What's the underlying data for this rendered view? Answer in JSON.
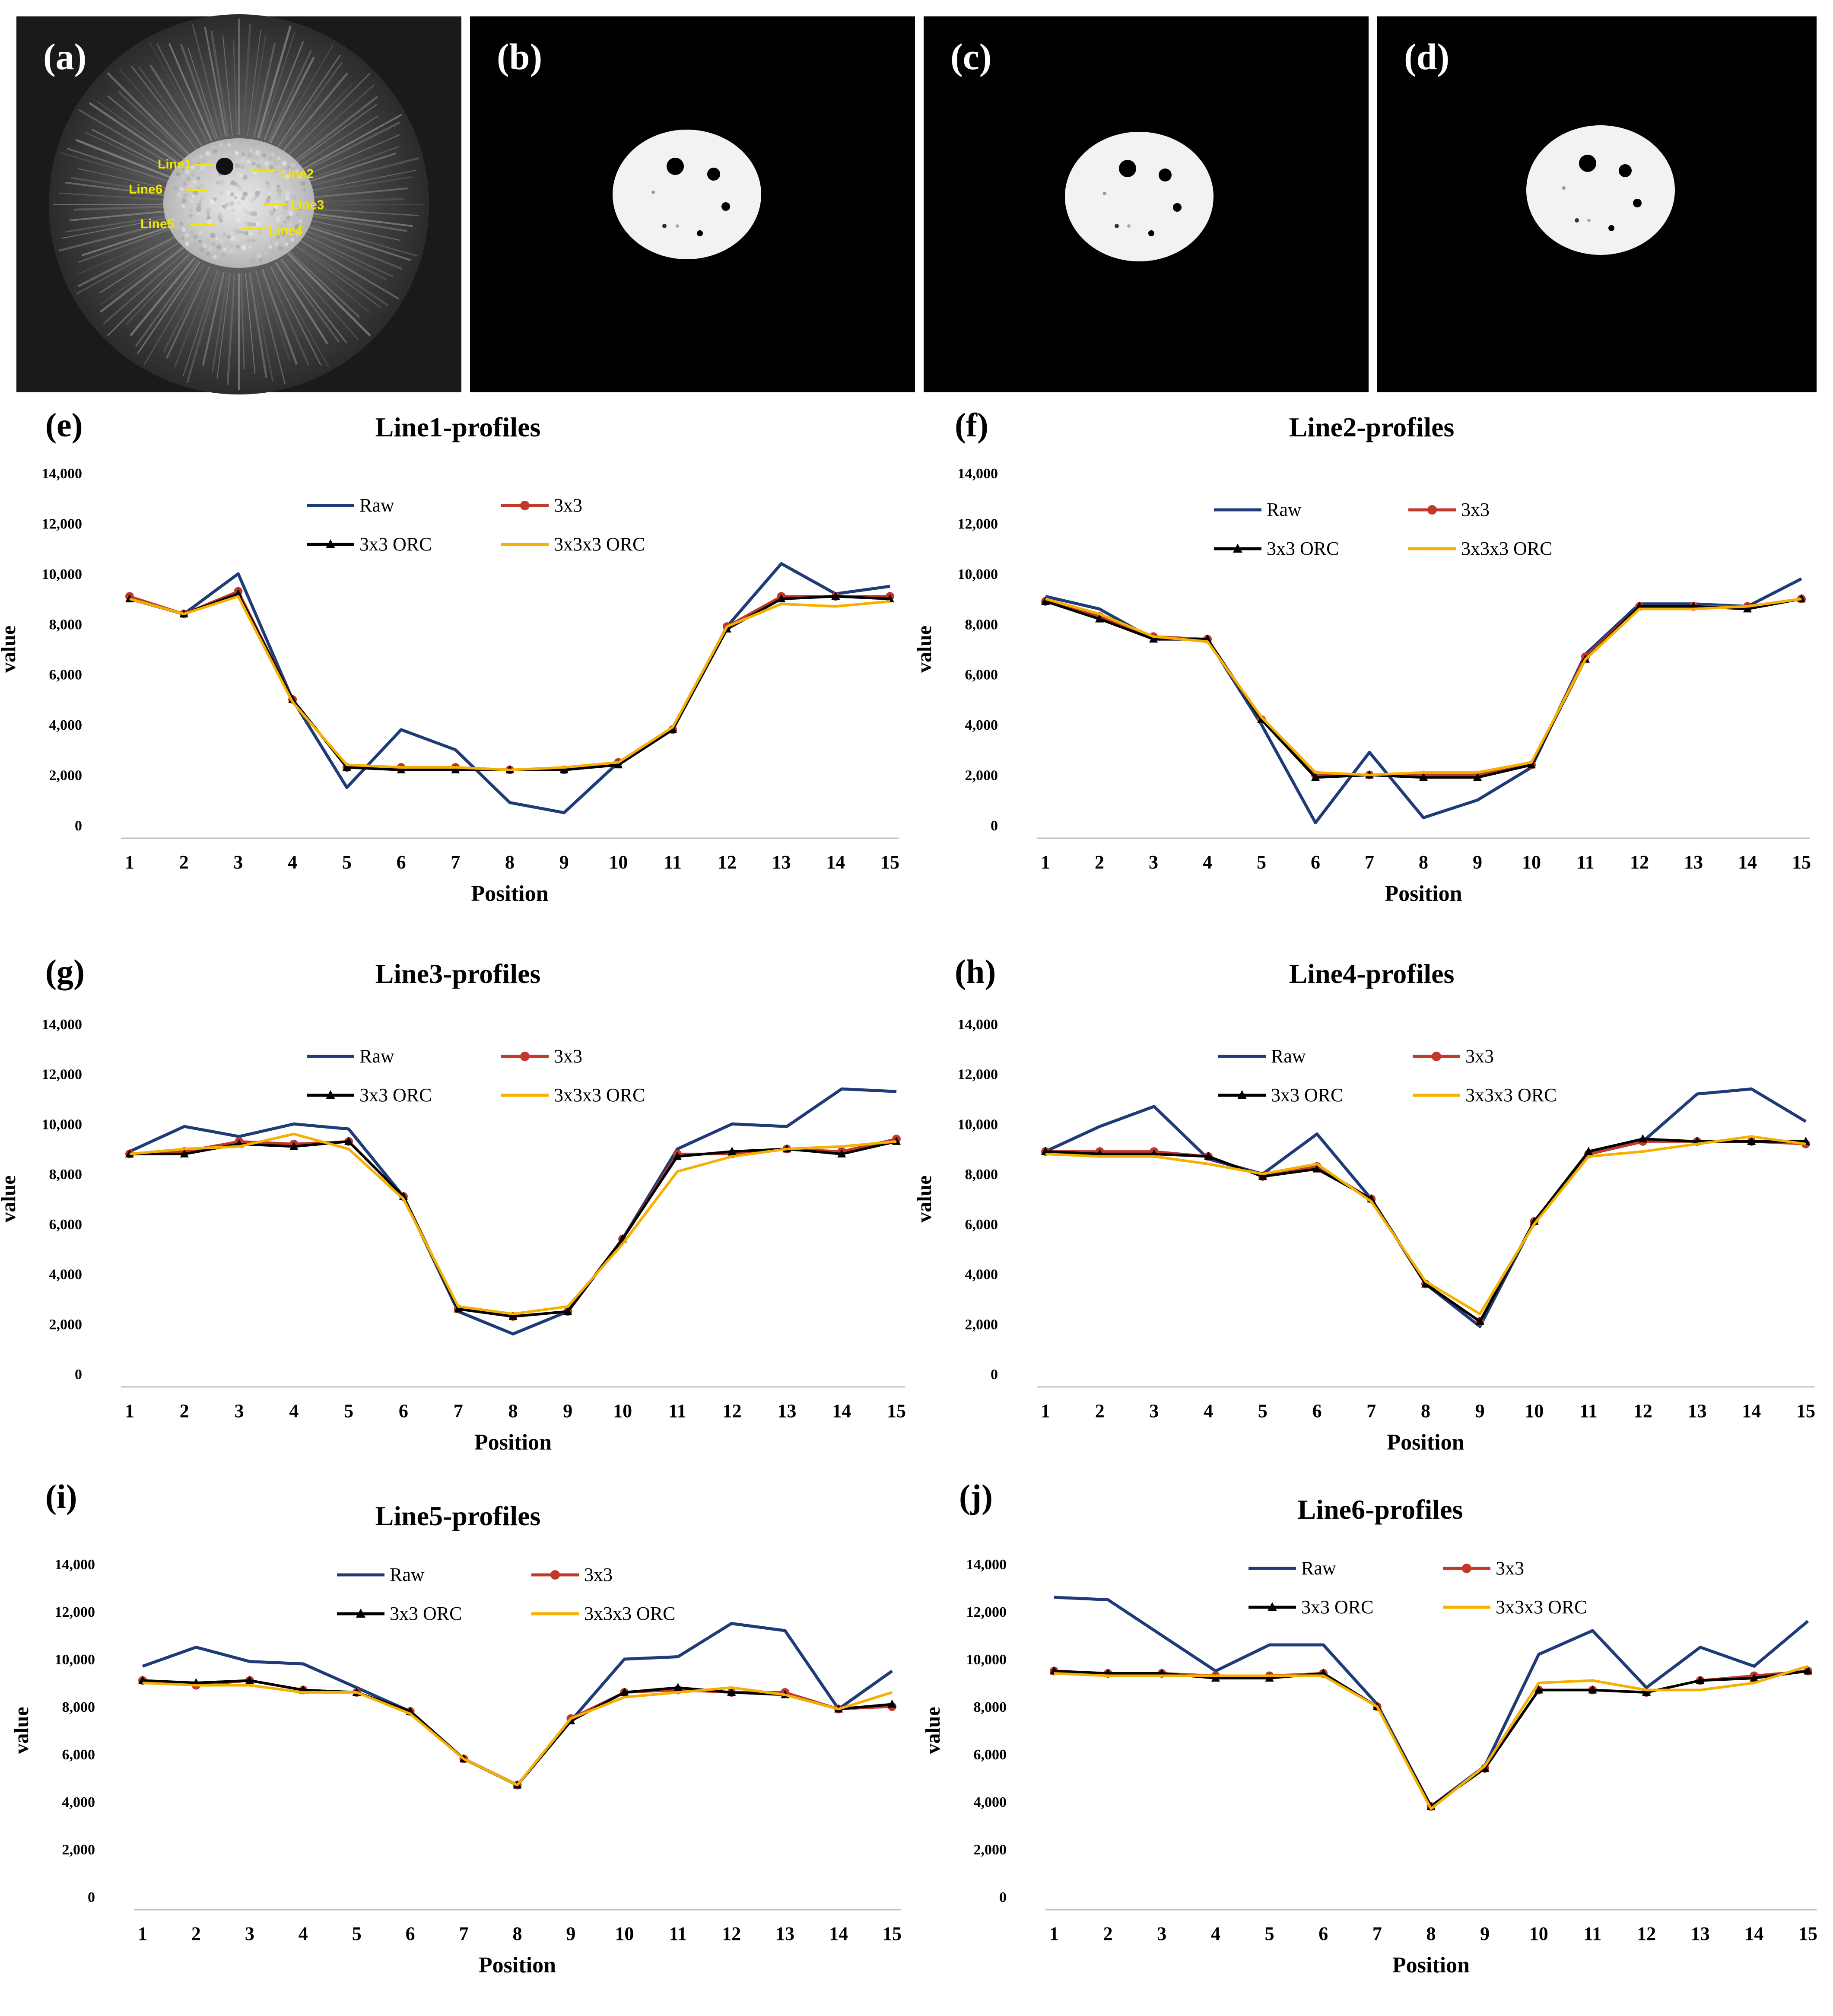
{
  "image_panels": [
    {
      "tag": "(a)",
      "line_labels": [
        "Line1",
        "Line2",
        "Line6",
        "Line3",
        "Line5",
        "Line4"
      ]
    },
    {
      "tag": "(b)"
    },
    {
      "tag": "(c)"
    },
    {
      "tag": "(d)"
    }
  ],
  "colors": {
    "raw": "#1f3b78",
    "k3x3": "#c0392b",
    "orc3x3": "#000000",
    "orc3x3x3": "#f5b000",
    "yellow_label": "#f2e600",
    "axis": "#bfbfbf"
  },
  "legend_labels": [
    "Raw",
    "3x3",
    "3x3 ORC",
    "3x3x3 ORC"
  ],
  "chart_data": [
    {
      "tag": "(e)",
      "type": "line",
      "title": "Line1-profiles",
      "xlabel": "Position",
      "ylabel": "value",
      "ylim": [
        0,
        14000
      ],
      "yticks": [
        "0",
        "2,000",
        "4,000",
        "6,000",
        "8,000",
        "10,000",
        "12,000",
        "14,000"
      ],
      "x": [
        "1",
        "2",
        "3",
        "4",
        "5",
        "6",
        "7",
        "8",
        "9",
        "10",
        "11",
        "12",
        "13",
        "14",
        "15"
      ],
      "series": [
        {
          "name": "Raw",
          "values": [
            9000,
            8400,
            10000,
            5000,
            1500,
            3800,
            3000,
            900,
            500,
            2500,
            3800,
            7900,
            10400,
            9200,
            9500
          ]
        },
        {
          "name": "3x3",
          "values": [
            9100,
            8400,
            9300,
            5000,
            2300,
            2300,
            2300,
            2200,
            2200,
            2500,
            3800,
            7900,
            9100,
            9100,
            9100
          ]
        },
        {
          "name": "3x3 ORC",
          "values": [
            9000,
            8400,
            9200,
            5000,
            2300,
            2200,
            2200,
            2200,
            2200,
            2400,
            3800,
            7800,
            9000,
            9100,
            9000
          ]
        },
        {
          "name": "3x3x3 ORC",
          "values": [
            9000,
            8400,
            9100,
            4900,
            2400,
            2300,
            2300,
            2200,
            2300,
            2500,
            3900,
            7900,
            8800,
            8700,
            8900
          ]
        }
      ]
    },
    {
      "tag": "(f)",
      "type": "line",
      "title": "Line2-profiles",
      "xlabel": "Position",
      "ylabel": "value",
      "ylim": [
        0,
        14000
      ],
      "yticks": [
        "0",
        "2,000",
        "4,000",
        "6,000",
        "8,000",
        "10,000",
        "12,000",
        "14,000"
      ],
      "x": [
        "1",
        "2",
        "3",
        "4",
        "5",
        "6",
        "7",
        "8",
        "9",
        "10",
        "11",
        "12",
        "13",
        "14",
        "15"
      ],
      "series": [
        {
          "name": "Raw",
          "values": [
            9100,
            8600,
            7400,
            7400,
            4000,
            100,
            2900,
            300,
            1000,
            2300,
            6800,
            8800,
            8800,
            8700,
            9800
          ]
        },
        {
          "name": "3x3",
          "values": [
            8900,
            8300,
            7500,
            7400,
            4200,
            2000,
            2000,
            2000,
            2000,
            2400,
            6700,
            8700,
            8700,
            8700,
            9000
          ]
        },
        {
          "name": "3x3 ORC",
          "values": [
            8900,
            8200,
            7400,
            7400,
            4200,
            1900,
            2000,
            1900,
            1900,
            2400,
            6600,
            8700,
            8700,
            8600,
            9000
          ]
        },
        {
          "name": "3x3x3 ORC",
          "values": [
            9000,
            8400,
            7500,
            7300,
            4300,
            2100,
            2000,
            2100,
            2100,
            2500,
            6600,
            8600,
            8600,
            8700,
            9000
          ]
        }
      ]
    },
    {
      "tag": "(g)",
      "type": "line",
      "title": "Line3-profiles",
      "xlabel": "Position",
      "ylabel": "value",
      "ylim": [
        0,
        14000
      ],
      "yticks": [
        "0",
        "2,000",
        "4,000",
        "6,000",
        "8,000",
        "10,000",
        "12,000",
        "14,000"
      ],
      "x": [
        "1",
        "2",
        "3",
        "4",
        "5",
        "6",
        "7",
        "8",
        "9",
        "10",
        "11",
        "12",
        "13",
        "14",
        "15"
      ],
      "series": [
        {
          "name": "Raw",
          "values": [
            8900,
            9900,
            9500,
            10000,
            9800,
            7100,
            2500,
            1600,
            2500,
            5400,
            9000,
            10000,
            9900,
            11400,
            11300
          ]
        },
        {
          "name": "3x3",
          "values": [
            8800,
            8900,
            9300,
            9200,
            9300,
            7100,
            2600,
            2300,
            2500,
            5400,
            8800,
            8800,
            9000,
            8900,
            9400
          ]
        },
        {
          "name": "3x3 ORC",
          "values": [
            8800,
            8800,
            9200,
            9100,
            9300,
            7100,
            2600,
            2300,
            2500,
            5400,
            8700,
            8900,
            9000,
            8800,
            9300
          ]
        },
        {
          "name": "3x3x3 ORC",
          "values": [
            8800,
            9000,
            9100,
            9600,
            9000,
            7000,
            2700,
            2400,
            2700,
            5200,
            8100,
            8700,
            9000,
            9100,
            9300
          ]
        }
      ]
    },
    {
      "tag": "(h)",
      "type": "line",
      "title": "Line4-profiles",
      "xlabel": "Position",
      "ylabel": "value",
      "ylim": [
        0,
        14000
      ],
      "yticks": [
        "0",
        "2,000",
        "4,000",
        "6,000",
        "8,000",
        "10,000",
        "12,000",
        "14,000"
      ],
      "x": [
        "1",
        "2",
        "3",
        "4",
        "5",
        "6",
        "7",
        "8",
        "9",
        "10",
        "11",
        "12",
        "13",
        "14",
        "15"
      ],
      "series": [
        {
          "name": "Raw",
          "values": [
            8900,
            9900,
            10700,
            8600,
            8000,
            9600,
            7000,
            3600,
            1900,
            6100,
            8800,
            9300,
            11200,
            11400,
            10100
          ]
        },
        {
          "name": "3x3",
          "values": [
            8900,
            8900,
            8900,
            8700,
            7900,
            8300,
            7000,
            3600,
            2100,
            6100,
            8800,
            9300,
            9300,
            9300,
            9200
          ]
        },
        {
          "name": "3x3 ORC",
          "values": [
            8900,
            8800,
            8800,
            8700,
            7900,
            8200,
            7000,
            3600,
            2100,
            6100,
            8900,
            9400,
            9300,
            9300,
            9300
          ]
        },
        {
          "name": "3x3x3 ORC",
          "values": [
            8800,
            8700,
            8700,
            8400,
            8000,
            8400,
            6900,
            3700,
            2400,
            6000,
            8700,
            8900,
            9200,
            9500,
            9200
          ]
        }
      ]
    },
    {
      "tag": "(i)",
      "type": "line",
      "title": "Line5-profiles",
      "xlabel": "Position",
      "ylabel": "value",
      "ylim": [
        0,
        14000
      ],
      "yticks": [
        "0",
        "2,000",
        "4,000",
        "6,000",
        "8,000",
        "10,000",
        "12,000",
        "14,000"
      ],
      "x": [
        "1",
        "2",
        "3",
        "4",
        "5",
        "6",
        "7",
        "8",
        "9",
        "10",
        "11",
        "12",
        "13",
        "14",
        "15"
      ],
      "series": [
        {
          "name": "Raw",
          "values": [
            9700,
            10500,
            9900,
            9800,
            8800,
            7800,
            5800,
            4700,
            7400,
            10000,
            10100,
            11500,
            11200,
            7900,
            9500
          ]
        },
        {
          "name": "3x3",
          "values": [
            9100,
            8900,
            9100,
            8700,
            8600,
            7800,
            5800,
            4700,
            7500,
            8600,
            8700,
            8600,
            8600,
            7900,
            8000
          ]
        },
        {
          "name": "3x3 ORC",
          "values": [
            9100,
            9000,
            9100,
            8700,
            8600,
            7800,
            5800,
            4700,
            7400,
            8600,
            8800,
            8600,
            8500,
            7900,
            8100
          ]
        },
        {
          "name": "3x3x3 ORC",
          "values": [
            9000,
            8900,
            8900,
            8600,
            8600,
            7700,
            5800,
            4700,
            7500,
            8400,
            8600,
            8800,
            8500,
            7900,
            8600
          ]
        }
      ]
    },
    {
      "tag": "(j)",
      "type": "line",
      "title": "Line6-profiles",
      "xlabel": "Position",
      "ylabel": "value",
      "ylim": [
        0,
        14000
      ],
      "yticks": [
        "0",
        "2,000",
        "4,000",
        "6,000",
        "8,000",
        "10,000",
        "12,000",
        "14,000"
      ],
      "x": [
        "1",
        "2",
        "3",
        "4",
        "5",
        "6",
        "7",
        "8",
        "9",
        "10",
        "11",
        "12",
        "13",
        "14",
        "15"
      ],
      "series": [
        {
          "name": "Raw",
          "values": [
            12600,
            12500,
            11000,
            9500,
            10600,
            10600,
            8100,
            3800,
            5500,
            10200,
            11200,
            8800,
            10500,
            9700,
            11600
          ]
        },
        {
          "name": "3x3",
          "values": [
            9500,
            9400,
            9400,
            9300,
            9300,
            9400,
            8000,
            3800,
            5400,
            8700,
            8700,
            8600,
            9100,
            9300,
            9500
          ]
        },
        {
          "name": "3x3 ORC",
          "values": [
            9500,
            9400,
            9400,
            9200,
            9200,
            9400,
            8000,
            3800,
            5400,
            8700,
            8700,
            8600,
            9100,
            9200,
            9500
          ]
        },
        {
          "name": "3x3x3 ORC",
          "values": [
            9400,
            9300,
            9300,
            9300,
            9300,
            9300,
            8000,
            3700,
            5500,
            9000,
            9100,
            8700,
            8700,
            9000,
            9700
          ]
        }
      ]
    }
  ]
}
